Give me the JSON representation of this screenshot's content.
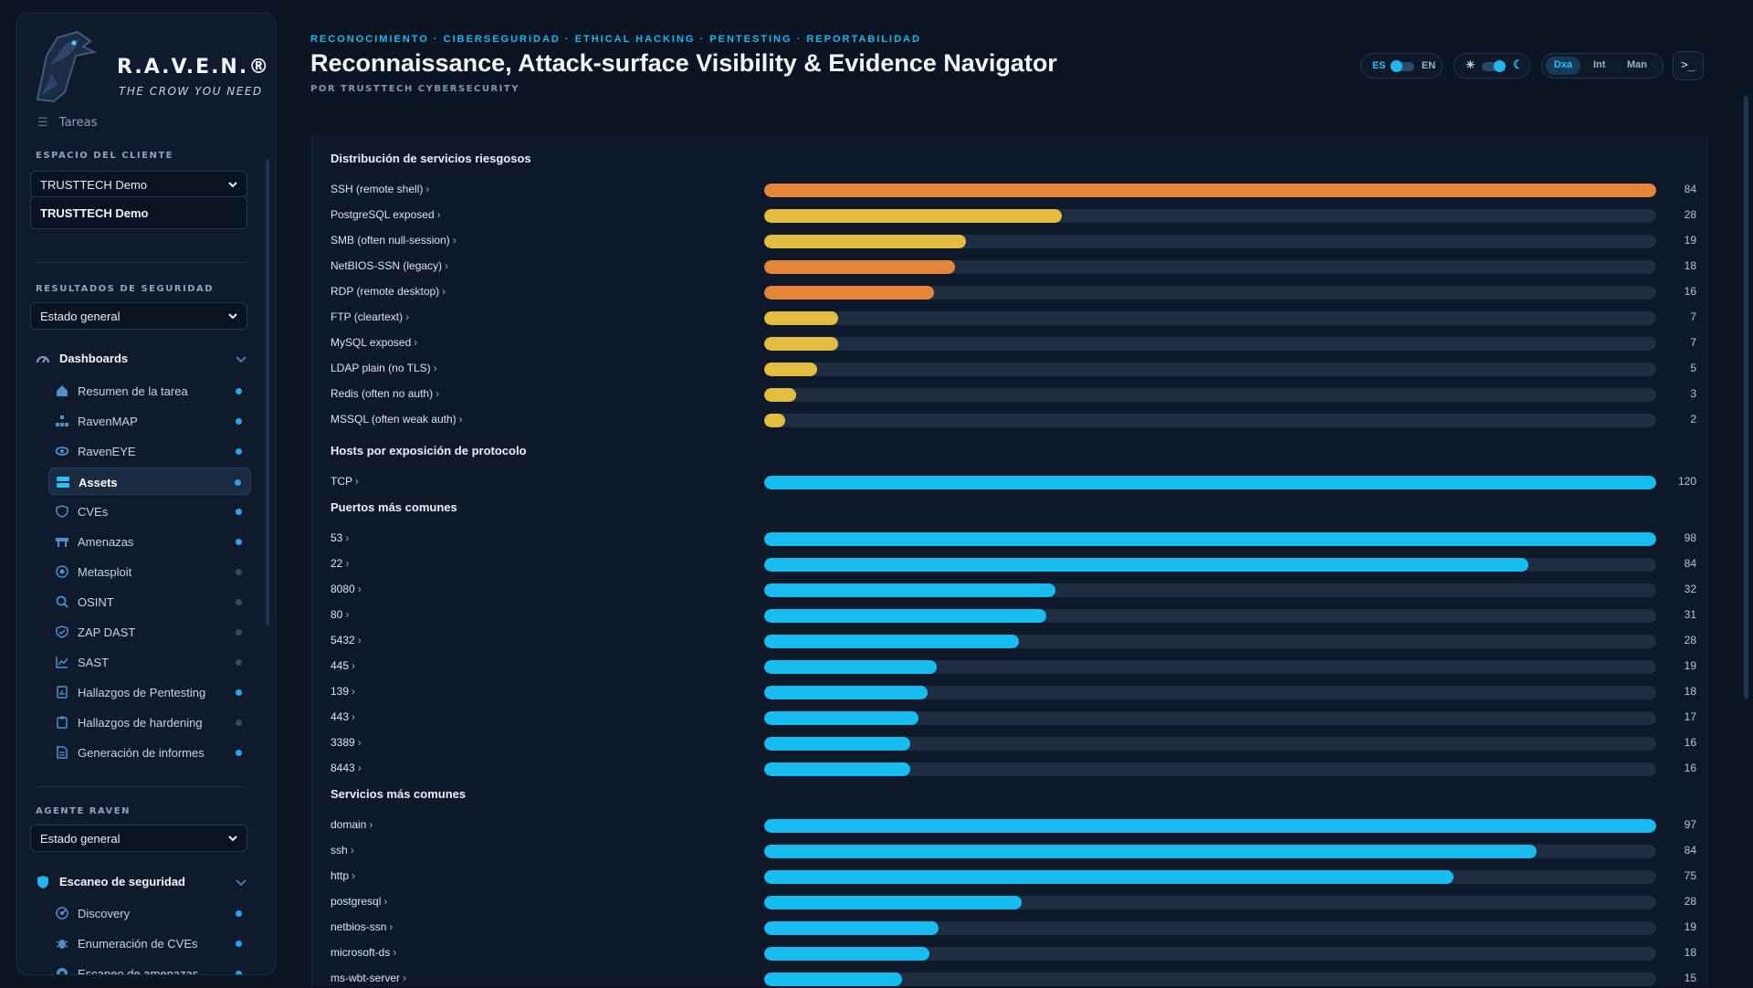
{
  "brand": {
    "name": "R.A.V.E.N.®",
    "tagline": "THE CROW YOU NEED"
  },
  "sidebar": {
    "partial_item": "Tareas",
    "client_space_label": "ESPACIO DEL CLIENTE",
    "client_select": "TRUSTTECH Demo",
    "client_name": "TRUSTTECH Demo",
    "security_results_label": "RESULTADOS DE SEGURIDAD",
    "security_results_select": "Estado general",
    "dashboards_group": "Dashboards",
    "dashboard_items": [
      {
        "label": "Resumen de la tarea",
        "icon": "home-icon",
        "active": false,
        "status": "on"
      },
      {
        "label": "RavenMAP",
        "icon": "network-icon",
        "active": false,
        "status": "on"
      },
      {
        "label": "RavenEYE",
        "icon": "eye-icon",
        "active": false,
        "status": "on"
      },
      {
        "label": "Assets",
        "icon": "server-icon",
        "active": true,
        "status": "on"
      },
      {
        "label": "CVEs",
        "icon": "shield-icon",
        "active": false,
        "status": "on"
      },
      {
        "label": "Amenazas",
        "icon": "barrier-icon",
        "active": false,
        "status": "on"
      },
      {
        "label": "Metasploit",
        "icon": "target-icon",
        "active": false,
        "status": "off"
      },
      {
        "label": "OSINT",
        "icon": "search-icon",
        "active": false,
        "status": "off"
      },
      {
        "label": "ZAP DAST",
        "icon": "shield-check-icon",
        "active": false,
        "status": "off"
      },
      {
        "label": "SAST",
        "icon": "chart-line-icon",
        "active": false,
        "status": "off"
      },
      {
        "label": "Hallazgos de Pentesting",
        "icon": "report-icon",
        "active": false,
        "status": "on"
      },
      {
        "label": "Hallazgos de hardening",
        "icon": "clipboard-icon",
        "active": false,
        "status": "off"
      },
      {
        "label": "Generación de informes",
        "icon": "document-icon",
        "active": false,
        "status": "on"
      }
    ],
    "agent_label": "AGENTE RAVEN",
    "agent_select": "Estado general",
    "scan_group": "Escaneo de seguridad",
    "scan_items": [
      {
        "label": "Discovery",
        "icon": "radar-icon",
        "status": "on"
      },
      {
        "label": "Enumeración de CVEs",
        "icon": "bug-icon",
        "status": "on"
      },
      {
        "label": "Escaneo de amenazas",
        "icon": "scan-icon",
        "status": "on"
      }
    ]
  },
  "header": {
    "kicker": "RECONOCIMIENTO · CIBERSEGURIDAD · ETHICAL HACKING · PENTESTING · REPORTABILIDAD",
    "title": "Reconnaissance, Attack-surface Visibility & Evidence Navigator",
    "byline": "POR TRUSTTECH CYBERSECURITY",
    "lang_left": "ES",
    "lang_right": "EN",
    "theme_sun": "☀",
    "theme_moon": "☾",
    "modes": [
      "Dxa",
      "Int",
      "Man"
    ],
    "active_mode": "Dxa",
    "terminal": ">_"
  },
  "colors": {
    "accent": "#1fb6ea",
    "bar_cyan": "#16bdf0",
    "bar_orange": "#e5853a",
    "bar_yellow": "#e2bd3f",
    "status_on": "#2aa6ec",
    "status_off": "#3a4a5e"
  },
  "chart_data": [
    {
      "type": "bar",
      "title": "Distribución de servicios riesgosos",
      "categories": [
        "SSH (remote shell)",
        "PostgreSQL exposed",
        "SMB (often null-session)",
        "NetBIOS-SSN (legacy)",
        "RDP (remote desktop)",
        "FTP (cleartext)",
        "MySQL exposed",
        "LDAP plain (no TLS)",
        "Redis (often no auth)",
        "MSSQL (often weak auth)"
      ],
      "values": [
        84,
        28,
        19,
        18,
        16,
        7,
        7,
        5,
        3,
        2
      ],
      "colors": [
        "orange",
        "yellow",
        "yellow",
        "orange",
        "orange",
        "yellow",
        "yellow",
        "yellow",
        "yellow",
        "yellow"
      ],
      "max": 84
    },
    {
      "type": "bar",
      "title": "Hosts por exposición de protocolo",
      "categories": [
        "TCP"
      ],
      "values": [
        120
      ],
      "max": 120
    },
    {
      "type": "bar",
      "title": "Puertos más comunes",
      "categories": [
        "53",
        "22",
        "8080",
        "80",
        "5432",
        "445",
        "139",
        "443",
        "3389",
        "8443"
      ],
      "values": [
        98,
        84,
        32,
        31,
        28,
        19,
        18,
        17,
        16,
        16
      ],
      "max": 98
    },
    {
      "type": "bar",
      "title": "Servicios más comunes",
      "categories": [
        "domain",
        "ssh",
        "http",
        "postgresql",
        "netbios-ssn",
        "microsoft-ds",
        "ms-wbt-server"
      ],
      "values": [
        97,
        84,
        75,
        28,
        19,
        18,
        15
      ],
      "max": 97
    }
  ]
}
